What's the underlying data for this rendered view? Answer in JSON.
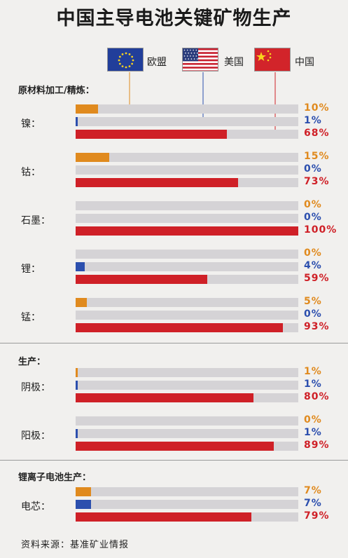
{
  "title": "中国主导电池关键矿物生产",
  "legend": [
    {
      "name": "欧盟",
      "flag": "eu-flag-icon"
    },
    {
      "name": "美国",
      "flag": "us-flag-icon"
    },
    {
      "name": "中国",
      "flag": "china-flag-icon"
    }
  ],
  "colors": {
    "eu": "#e08a1e",
    "us": "#2c4fae",
    "cn": "#cf2027",
    "track": "#d5d3d6"
  },
  "source": "资料来源：基准矿业情报",
  "chart_data": {
    "type": "bar",
    "orientation": "horizontal",
    "unit": "%",
    "xlim": [
      0,
      100
    ],
    "series_names": [
      "欧盟",
      "美国",
      "中国"
    ],
    "sections": [
      {
        "title": "原材料加工/精炼：",
        "categories": [
          {
            "label": "镍：",
            "values": [
              10,
              1,
              68
            ],
            "labels": [
              "10%",
              "1%",
              "68%"
            ]
          },
          {
            "label": "钴：",
            "values": [
              15,
              0,
              73
            ],
            "labels": [
              "15%",
              "0%",
              "73%"
            ]
          },
          {
            "label": "石墨：",
            "values": [
              0,
              0,
              100
            ],
            "labels": [
              "0%",
              "0%",
              "100%"
            ]
          },
          {
            "label": "锂：",
            "values": [
              0,
              4,
              59
            ],
            "labels": [
              "0%",
              "4%",
              "59%"
            ]
          },
          {
            "label": "锰：",
            "values": [
              5,
              0,
              93
            ],
            "labels": [
              "5%",
              "0%",
              "93%"
            ]
          }
        ]
      },
      {
        "title": "生产：",
        "categories": [
          {
            "label": "阴极：",
            "values": [
              1,
              1,
              80
            ],
            "labels": [
              "1%",
              "1%",
              "80%"
            ]
          },
          {
            "label": "阳极：",
            "values": [
              0,
              1,
              89
            ],
            "labels": [
              "0%",
              "1%",
              "89%"
            ]
          }
        ]
      },
      {
        "title": "锂离子电池生产：",
        "categories": [
          {
            "label": "电芯：",
            "values": [
              7,
              7,
              79
            ],
            "labels": [
              "7%",
              "7%",
              "79%"
            ]
          }
        ]
      }
    ]
  }
}
